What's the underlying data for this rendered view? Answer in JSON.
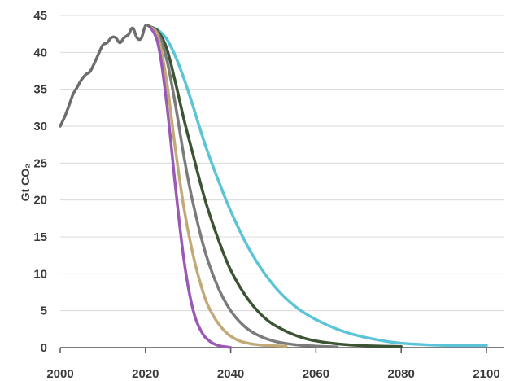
{
  "chart_data": {
    "type": "line",
    "ylabel": "Gt CO₂",
    "xlim": [
      2000,
      2100
    ],
    "ylim": [
      0,
      45
    ],
    "xticks": [
      2000,
      2020,
      2040,
      2060,
      2080,
      2100
    ],
    "yticks": [
      0,
      5,
      10,
      15,
      20,
      25,
      30,
      35,
      40,
      45
    ],
    "grid": "horizontal",
    "legend": "none",
    "series": [
      {
        "color": "#6d6d6d",
        "x": [
          2000,
          2001,
          2002,
          2003,
          2004,
          2005,
          2006,
          2007,
          2008,
          2009,
          2010,
          2011,
          2012,
          2013,
          2014,
          2015,
          2016,
          2017,
          2018,
          2019,
          2020,
          2021
        ],
        "y": [
          30.0,
          31.2,
          32.7,
          34.3,
          35.3,
          36.3,
          37.0,
          37.4,
          38.5,
          39.8,
          41.0,
          41.3,
          42.0,
          42.0,
          41.3,
          42.0,
          42.4,
          43.3,
          42.0,
          41.9,
          43.6,
          43.5
        ]
      },
      {
        "color": "#9b59b6",
        "x": [
          2021,
          2023,
          2025,
          2027,
          2029,
          2031,
          2033,
          2035,
          2037,
          2039,
          2040
        ],
        "y": [
          43.5,
          41.0,
          33.0,
          22.0,
          12.0,
          5.5,
          2.3,
          0.9,
          0.3,
          0.1,
          0.0
        ]
      },
      {
        "color": "#c2aa78",
        "x": [
          2021,
          2023,
          2025,
          2027,
          2029,
          2031,
          2033,
          2035,
          2038,
          2041,
          2044,
          2048,
          2053
        ],
        "y": [
          43.5,
          42.0,
          36.0,
          27.0,
          19.0,
          13.0,
          8.5,
          5.3,
          2.6,
          1.2,
          0.6,
          0.3,
          0.2
        ]
      },
      {
        "color": "#7b7b7b",
        "x": [
          2021,
          2023,
          2025,
          2027,
          2029,
          2031,
          2034,
          2037,
          2040,
          2043,
          2046,
          2050,
          2055,
          2060,
          2065
        ],
        "y": [
          43.5,
          42.5,
          39.0,
          33.0,
          26.0,
          20.0,
          13.0,
          8.2,
          5.0,
          3.0,
          1.8,
          0.9,
          0.4,
          0.2,
          0.1
        ]
      },
      {
        "color": "#3c5434",
        "x": [
          2021,
          2023,
          2025,
          2027,
          2029,
          2031,
          2034,
          2037,
          2040,
          2044,
          2048,
          2052,
          2056,
          2060,
          2066,
          2072,
          2080
        ],
        "y": [
          43.5,
          42.8,
          40.5,
          36.0,
          31.0,
          26.5,
          20.0,
          14.8,
          10.5,
          6.6,
          4.0,
          2.5,
          1.5,
          0.9,
          0.45,
          0.25,
          0.15
        ]
      },
      {
        "color": "#5bc4d6",
        "x": [
          2021,
          2023,
          2025,
          2027,
          2029,
          2031,
          2034,
          2037,
          2040,
          2044,
          2048,
          2052,
          2056,
          2060,
          2065,
          2070,
          2075,
          2080,
          2090,
          2100
        ],
        "y": [
          43.5,
          43.0,
          41.8,
          39.5,
          36.5,
          33.0,
          27.5,
          22.8,
          18.5,
          13.7,
          10.0,
          7.2,
          5.2,
          3.8,
          2.5,
          1.6,
          1.0,
          0.6,
          0.3,
          0.3
        ]
      }
    ]
  }
}
